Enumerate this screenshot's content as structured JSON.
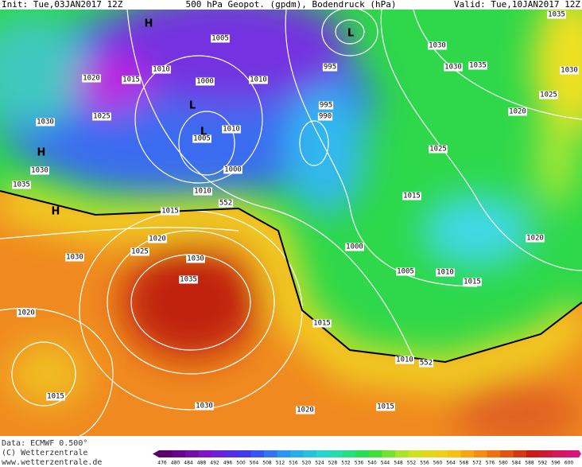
{
  "header": {
    "init": "Init: Tue,03JAN2017 12Z",
    "title": "500 hPa Geopot. (gpdm), Bodendruck (hPa)",
    "valid": "Valid: Tue,10JAN2017 12Z"
  },
  "map": {
    "isobar_labels": [
      "1005",
      "1020",
      "1015",
      "1010",
      "1000",
      "1010",
      "1025",
      "1030",
      "1010",
      "1005",
      "1000",
      "1030",
      "1035",
      "1010",
      "1015",
      "1020",
      "1025",
      "1030",
      "1030",
      "1035",
      "1020",
      "1015",
      "1030",
      "1020",
      "1015",
      "1015",
      "1010",
      "1005",
      "1010",
      "1015",
      "1000",
      "1015",
      "1020",
      "1025",
      "1020",
      "1025",
      "1030",
      "1030",
      "1035",
      "1030",
      "1035",
      "995",
      "995",
      "990"
    ],
    "contour_labels": [
      "552",
      "552"
    ],
    "pressure_systems": [
      "H",
      "L",
      "L",
      "H",
      "H",
      "L"
    ]
  },
  "footer": {
    "data": "Data: ECMWF  0.500°",
    "copyright": "(C) Wetterzentrale",
    "url": "www.wetterzentrale.de"
  },
  "colorbar": {
    "labels": [
      "476",
      "480",
      "484",
      "488",
      "492",
      "496",
      "500",
      "504",
      "508",
      "512",
      "516",
      "520",
      "524",
      "528",
      "532",
      "536",
      "540",
      "544",
      "548",
      "552",
      "556",
      "560",
      "564",
      "568",
      "572",
      "576",
      "580",
      "584",
      "588",
      "592",
      "596",
      "600"
    ]
  }
}
